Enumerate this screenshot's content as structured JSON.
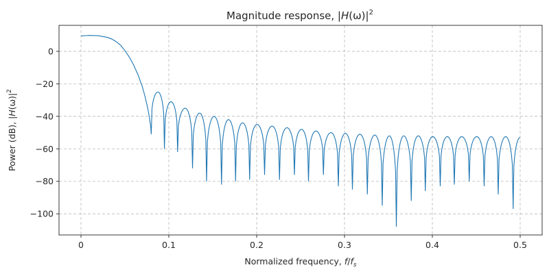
{
  "chart_data": {
    "type": "line",
    "title_main": "Magnitude response, |",
    "title_var": "H",
    "title_paren": "(ω)|",
    "title_sup": "2",
    "xlabel_main": "Normalized frequency, ",
    "xlabel_f": "f",
    "xlabel_slash": "/",
    "xlabel_fs": "f",
    "xlabel_sub": "s",
    "ylabel_main": "Power (dB), |",
    "ylabel_var": "H",
    "ylabel_paren": "(ω)|",
    "ylabel_sup": "2",
    "xlim": [
      -0.025,
      0.525
    ],
    "ylim": [
      -113,
      16
    ],
    "grid": true,
    "xticks": [
      0,
      0.1,
      0.2,
      0.3,
      0.4,
      0.5
    ],
    "xtick_labels": [
      "0",
      "0.1",
      "0.2",
      "0.3",
      "0.4",
      "0.5"
    ],
    "yticks": [
      0,
      -20,
      -40,
      -60,
      -80,
      -100
    ],
    "ytick_labels": [
      "0",
      "−20",
      "−40",
      "−60",
      "−80",
      "−100"
    ],
    "line_color": "#1f77b4",
    "mainlobe": {
      "x": [
        0.0,
        0.01,
        0.02,
        0.03,
        0.035,
        0.04,
        0.045,
        0.05,
        0.055,
        0.06,
        0.065,
        0.07,
        0.073,
        0.076,
        0.078,
        0.0795
      ],
      "y": [
        9.5,
        9.8,
        9.6,
        8.6,
        7.6,
        6.0,
        3.8,
        0.5,
        -3.5,
        -8.5,
        -14.5,
        -22,
        -28,
        -35,
        -41,
        -47
      ]
    },
    "nulls": [
      {
        "x": 0.08,
        "y": -51
      },
      {
        "x": 0.095,
        "y": -60
      },
      {
        "x": 0.11,
        "y": -62
      },
      {
        "x": 0.127,
        "y": -72
      },
      {
        "x": 0.143,
        "y": -80
      },
      {
        "x": 0.16,
        "y": -82
      },
      {
        "x": 0.176,
        "y": -80
      },
      {
        "x": 0.192,
        "y": -79
      },
      {
        "x": 0.209,
        "y": -76
      },
      {
        "x": 0.226,
        "y": -79
      },
      {
        "x": 0.243,
        "y": -76
      },
      {
        "x": 0.259,
        "y": -80
      },
      {
        "x": 0.276,
        "y": -76
      },
      {
        "x": 0.293,
        "y": -83
      },
      {
        "x": 0.309,
        "y": -85
      },
      {
        "x": 0.326,
        "y": -88
      },
      {
        "x": 0.343,
        "y": -95
      },
      {
        "x": 0.359,
        "y": -108
      },
      {
        "x": 0.376,
        "y": -92
      },
      {
        "x": 0.392,
        "y": -86
      },
      {
        "x": 0.409,
        "y": -83
      },
      {
        "x": 0.425,
        "y": -82
      },
      {
        "x": 0.442,
        "y": -80
      },
      {
        "x": 0.459,
        "y": -83
      },
      {
        "x": 0.475,
        "y": -88
      },
      {
        "x": 0.492,
        "y": -97
      }
    ],
    "sidelobe_peaks": [
      {
        "x": 0.087,
        "y": -25
      },
      {
        "x": 0.103,
        "y": -31
      },
      {
        "x": 0.119,
        "y": -35
      },
      {
        "x": 0.135,
        "y": -38
      },
      {
        "x": 0.151,
        "y": -40
      },
      {
        "x": 0.168,
        "y": -42
      },
      {
        "x": 0.184,
        "y": -44
      },
      {
        "x": 0.201,
        "y": -45
      },
      {
        "x": 0.217,
        "y": -46
      },
      {
        "x": 0.234,
        "y": -47
      },
      {
        "x": 0.251,
        "y": -48
      },
      {
        "x": 0.267,
        "y": -49
      },
      {
        "x": 0.284,
        "y": -50
      },
      {
        "x": 0.301,
        "y": -50.5
      },
      {
        "x": 0.317,
        "y": -51
      },
      {
        "x": 0.334,
        "y": -51.5
      },
      {
        "x": 0.351,
        "y": -52
      },
      {
        "x": 0.367,
        "y": -52
      },
      {
        "x": 0.384,
        "y": -52
      },
      {
        "x": 0.4,
        "y": -52.5
      },
      {
        "x": 0.417,
        "y": -52.5
      },
      {
        "x": 0.434,
        "y": -52.5
      },
      {
        "x": 0.45,
        "y": -52.5
      },
      {
        "x": 0.467,
        "y": -52.5
      },
      {
        "x": 0.484,
        "y": -52.5
      }
    ],
    "end_point": {
      "x": 0.5,
      "y": -53
    }
  }
}
